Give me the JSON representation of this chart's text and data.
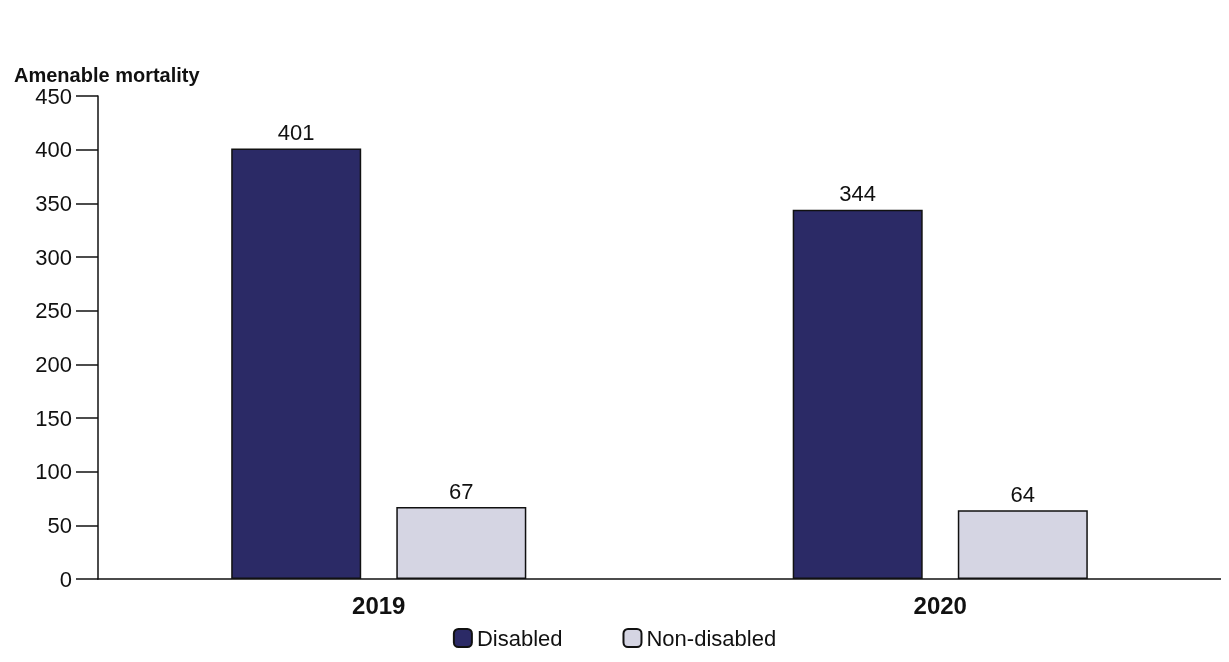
{
  "chart_data": {
    "type": "bar",
    "ylabel": "Amenable mortality",
    "categories": [
      "2019",
      "2020"
    ],
    "series": [
      {
        "name": "Disabled",
        "color": "#2b2a66",
        "values": [
          401,
          344
        ]
      },
      {
        "name": "Non-disabled",
        "color": "#d5d5e3",
        "values": [
          67,
          64
        ]
      }
    ],
    "ylim": [
      0,
      450
    ],
    "yticks": [
      0,
      50,
      100,
      150,
      200,
      250,
      300,
      350,
      400,
      450
    ],
    "grid": false,
    "legend": "bottom",
    "data_labels": true
  }
}
